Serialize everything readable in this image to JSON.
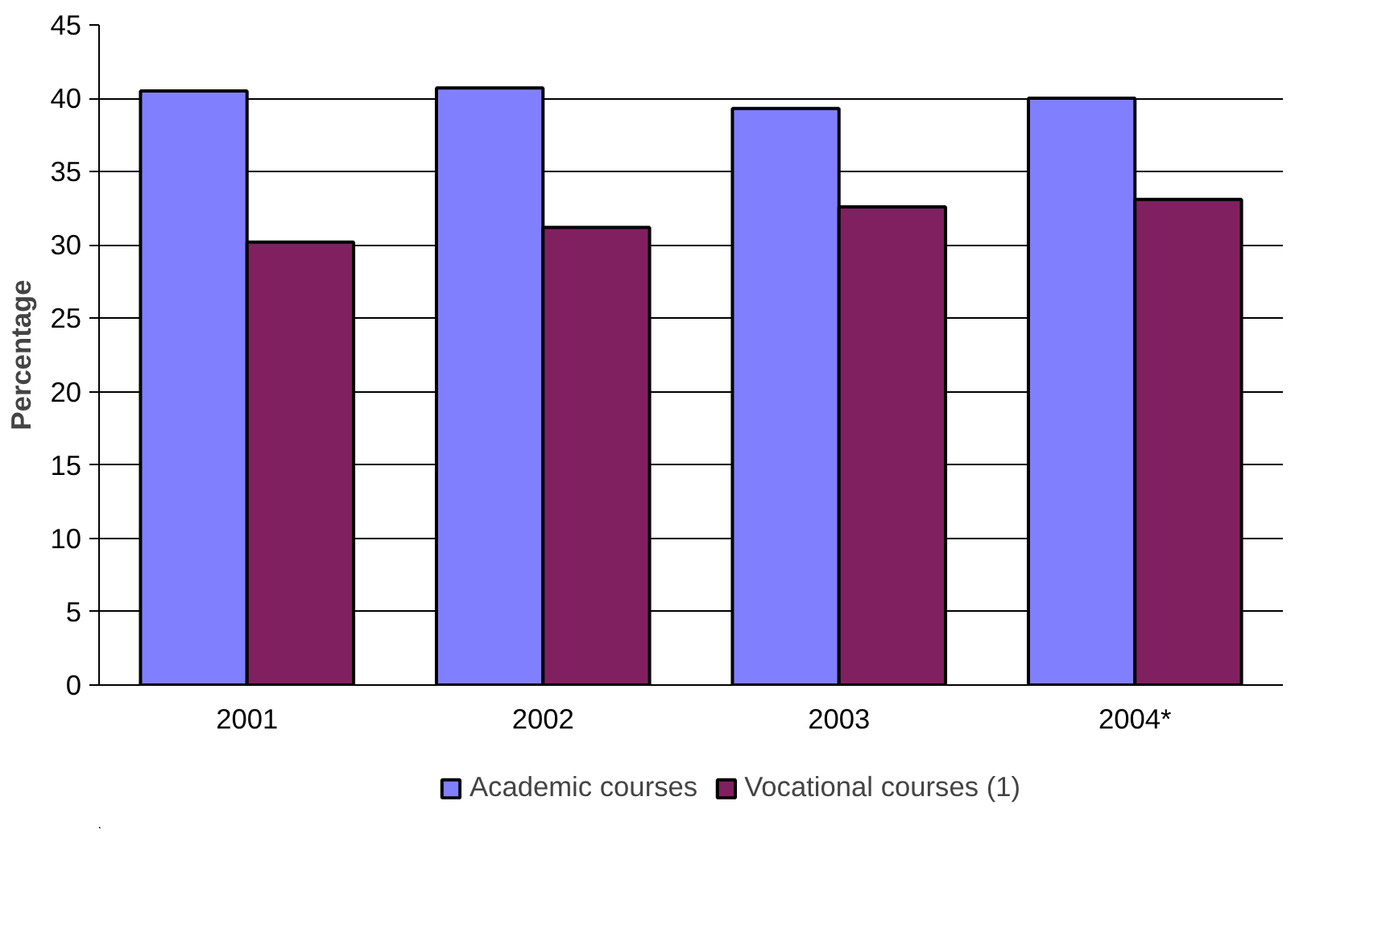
{
  "chart_data": {
    "type": "bar",
    "ylabel": "Percentage",
    "categories": [
      "2001",
      "2002",
      "2003",
      "2004*"
    ],
    "series": [
      {
        "name": "Academic courses",
        "color": "#8080ff",
        "values": [
          40.5,
          40.7,
          39.3,
          40.0
        ]
      },
      {
        "name": "Vocational courses (1)",
        "color": "#802060",
        "values": [
          30.2,
          31.2,
          32.6,
          33.1
        ]
      }
    ],
    "ylim": [
      0,
      45
    ],
    "yticks": [
      0,
      5,
      10,
      15,
      20,
      25,
      30,
      35,
      40,
      45
    ],
    "grid": "y",
    "legend": "bottom"
  }
}
